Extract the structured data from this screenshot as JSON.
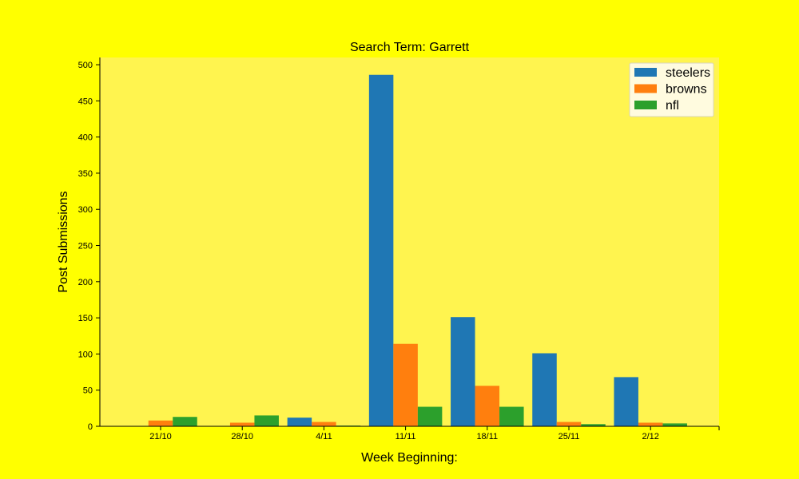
{
  "chart_data": {
    "type": "bar",
    "title": "Search Term: Garrett",
    "xlabel": "Week Beginning:",
    "ylabel": "Post Submissions",
    "categories": [
      "21/10",
      "28/10",
      "4/11",
      "11/11",
      "18/11",
      "25/11",
      "2/12"
    ],
    "series": [
      {
        "name": "steelers",
        "color": "#1f77b4",
        "values": [
          0,
          0,
          12,
          486,
          151,
          101,
          68
        ]
      },
      {
        "name": "browns",
        "color": "#ff7f0e",
        "values": [
          8,
          5,
          6,
          114,
          56,
          6,
          5
        ]
      },
      {
        "name": "nfl",
        "color": "#2ca02c",
        "values": [
          13,
          15,
          1,
          27,
          27,
          3,
          4
        ]
      }
    ],
    "ylim": [
      0,
      510
    ],
    "yticks": [
      0,
      50,
      100,
      150,
      200,
      250,
      300,
      350,
      400,
      450,
      500
    ],
    "grid": false,
    "legend_position": "top-right",
    "colors": {
      "page_background": "#ffff00",
      "plot_background": "#fff44f",
      "legend_background": "#fffbdf"
    }
  }
}
